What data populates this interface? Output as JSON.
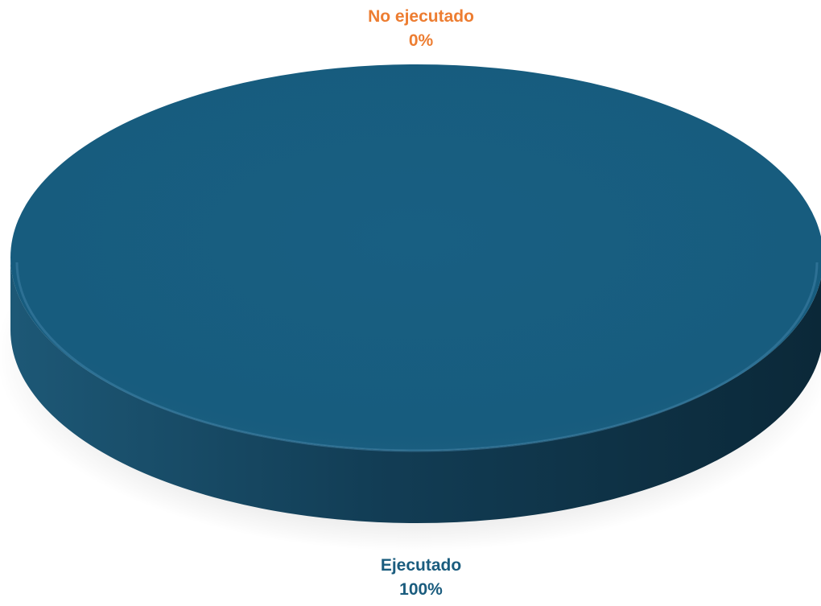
{
  "chart_data": {
    "type": "pie",
    "title": "",
    "slices": [
      {
        "label": "No ejecutado",
        "value": 0,
        "value_label": "0%",
        "color": "#ED7D31"
      },
      {
        "label": "Ejecutado",
        "value": 100,
        "value_label": "100%",
        "color": "#1A5C7E"
      }
    ],
    "style": "3d",
    "legend": "none"
  }
}
